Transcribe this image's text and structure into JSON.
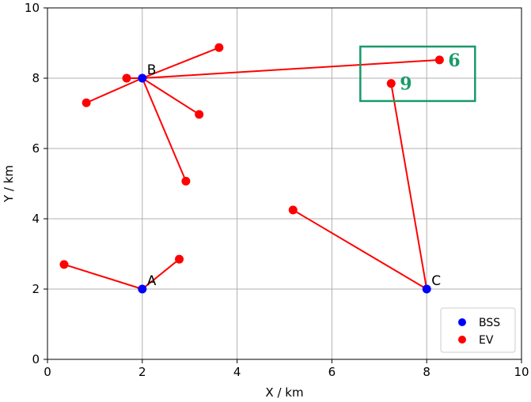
{
  "chart_data": {
    "type": "scatter",
    "title": "",
    "xlabel": "X / km",
    "ylabel": "Y / km",
    "xlim": [
      0,
      10
    ],
    "ylim": [
      0,
      10
    ],
    "xticks": [
      "0",
      "2",
      "4",
      "6",
      "8",
      "10"
    ],
    "yticks": [
      "0",
      "2",
      "4",
      "6",
      "8",
      "10"
    ],
    "grid": true,
    "legend_position": "lower-right",
    "colors": {
      "bss": "#0000ff",
      "ev": "#ff0000",
      "line": "#ff0000",
      "highlight": "#1a9a6a"
    },
    "stations": [
      {
        "name": "A",
        "x": 2,
        "y": 2
      },
      {
        "name": "B",
        "x": 2,
        "y": 8
      },
      {
        "name": "C",
        "x": 8,
        "y": 2
      }
    ],
    "evs": [
      {
        "x": 0.35,
        "y": 2.7,
        "station": "A"
      },
      {
        "x": 2.78,
        "y": 2.85,
        "station": "A"
      },
      {
        "x": 3.62,
        "y": 8.87,
        "station": "B"
      },
      {
        "x": 1.67,
        "y": 8.0,
        "station": "B"
      },
      {
        "x": 0.82,
        "y": 7.3,
        "station": "B"
      },
      {
        "x": 3.2,
        "y": 6.97,
        "station": "B"
      },
      {
        "x": 2.92,
        "y": 5.07,
        "station": "B"
      },
      {
        "x": 8.27,
        "y": 8.52,
        "station": "B",
        "label": "6"
      },
      {
        "x": 5.18,
        "y": 4.25,
        "station": "C"
      },
      {
        "x": 7.25,
        "y": 7.85,
        "station": "C",
        "label": "9"
      }
    ],
    "highlight_box": {
      "x0": 6.6,
      "x1": 9.02,
      "y0": 7.35,
      "y1": 8.9
    },
    "legend": [
      {
        "label": "BSS",
        "series": "bss"
      },
      {
        "label": "EV",
        "series": "ev"
      }
    ]
  }
}
